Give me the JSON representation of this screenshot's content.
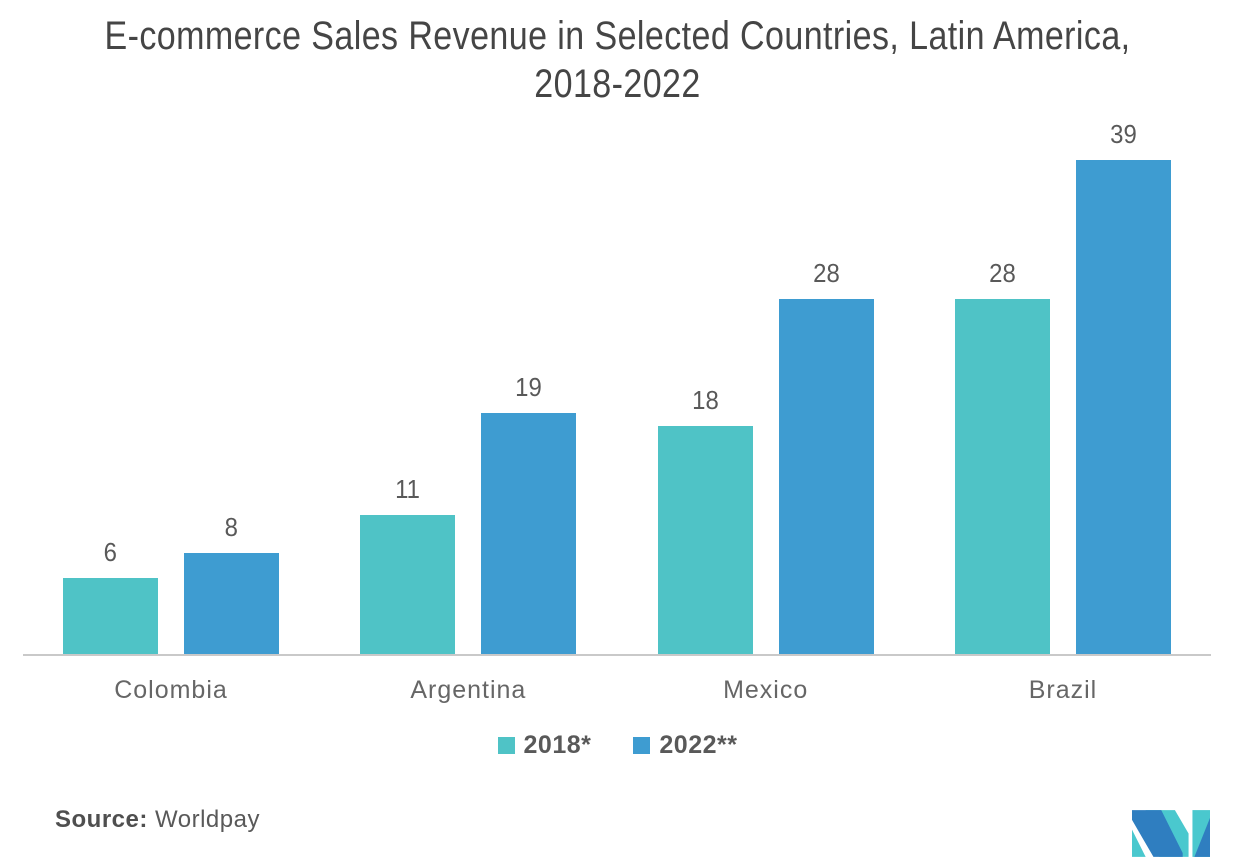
{
  "title": {
    "line1": "E-commerce Sales Revenue in Selected Countries, Latin America,",
    "line2": "2018-2022"
  },
  "chart_data": {
    "type": "bar",
    "categories": [
      "Colombia",
      "Argentina",
      "Mexico",
      "Brazil"
    ],
    "series": [
      {
        "name": "2018*",
        "color": "#4FC3C6",
        "values": [
          6,
          11,
          18,
          28
        ]
      },
      {
        "name": "2022**",
        "color": "#3E9CD1",
        "values": [
          8,
          19,
          28,
          39
        ]
      }
    ],
    "title": "E-commerce Sales Revenue in Selected Countries, Latin America, 2018-2022",
    "xlabel": "",
    "ylabel": "",
    "ylim": [
      0,
      39
    ],
    "grid": false,
    "data_labels": true,
    "legend_position": "bottom",
    "axis_line_color": "#c9c9c9"
  },
  "source": {
    "label": "Source:",
    "value": "Worldpay"
  },
  "footer": {
    "logo_icon": "mordor-intelligence-logo"
  },
  "colors": {
    "series_2018": "#4FC3C6",
    "series_2022": "#3E9CD1",
    "title_text": "#454545",
    "label_text": "#595959",
    "category_text": "#666666",
    "logo_teal": "#4AC8CE",
    "logo_blue": "#2F7EC0"
  }
}
